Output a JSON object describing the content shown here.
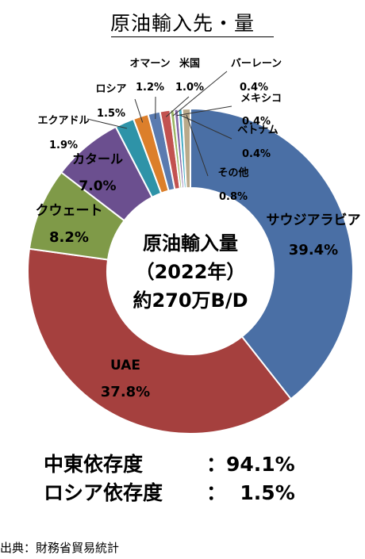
{
  "title": "原油輸入先・量",
  "chart_data": {
    "type": "pie",
    "center_label": [
      "原油輸入量",
      "（2022年）",
      "約270万B/D"
    ],
    "slices": [
      {
        "name": "サウジアラビア",
        "value": 39.4,
        "label": "39.4%",
        "color": "#4a6fa5"
      },
      {
        "name": "UAE",
        "value": 37.8,
        "label": "37.8%",
        "color": "#a5403e"
      },
      {
        "name": "クウェート",
        "value": 8.2,
        "label": "8.2%",
        "color": "#7f9a48"
      },
      {
        "name": "カタール",
        "value": 7.0,
        "label": "7.0%",
        "color": "#6b4f8f"
      },
      {
        "name": "エクアドル",
        "value": 1.9,
        "label": "1.9%",
        "color": "#2e93a8"
      },
      {
        "name": "ロシア",
        "value": 1.5,
        "label": "1.5%",
        "color": "#dc7f2b"
      },
      {
        "name": "オマーン",
        "value": 1.2,
        "label": "1.2%",
        "color": "#5a7bb0"
      },
      {
        "name": "米国",
        "value": 1.0,
        "label": "1.0%",
        "color": "#c25250"
      },
      {
        "name": "バーレーン",
        "value": 0.4,
        "label": "0.4%",
        "color": "#9bb765"
      },
      {
        "name": "メキシコ",
        "value": 0.4,
        "label": "0.4%",
        "color": "#8467a6"
      },
      {
        "name": "ベトナム",
        "value": 0.4,
        "label": "0.4%",
        "color": "#46adc4"
      },
      {
        "name": "その他",
        "value": 0.8,
        "label": "0.8%",
        "color": "#b9a98a"
      }
    ]
  },
  "summary": [
    {
      "label": "中東依存度",
      "value": "：94.1%"
    },
    {
      "label": "ロシア依存度",
      "value": "：  1.5%"
    }
  ],
  "source": "出典：財務省貿易統計"
}
